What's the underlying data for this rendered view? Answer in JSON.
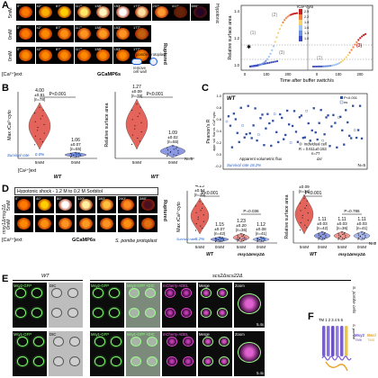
{
  "panelA": {
    "letter": "A",
    "rows": [
      {
        "label": "5mM",
        "times": [
          "0\"",
          "42\"",
          "87\"",
          "117\"",
          "138\"",
          "153\"",
          "177\"",
          "237\"",
          "417\"",
          "600\""
        ]
      },
      {
        "label": "0mM",
        "times": [
          "0\"",
          "42\"",
          "87\"",
          "117\"",
          "138\"",
          "153\"",
          "177\""
        ]
      }
    ],
    "ruptured_label": "Ruptured",
    "ext_label": "[Ca²⁺]ext",
    "sensor_label": "GCaMP6s",
    "legend_line1": "S. pombe",
    "legend_line2": "protoplast",
    "legend_line3": "remove",
    "legend_line4": "cell wall",
    "sidebar_label": "Hypotonic",
    "plot": {
      "ylabel": "Relative surface area",
      "xlabel": "Time after buffer switch/s",
      "colorbar_title": "rCa²⁺cyto",
      "colorbar_ticks": [
        "2.5",
        "2.2",
        "1.9",
        "1.6",
        "1.3",
        "1.0"
      ],
      "xticks": [
        "0",
        "100",
        "200",
        "0",
        "100",
        "200"
      ],
      "yticks": [
        "1.0",
        "1.2",
        "1.4"
      ],
      "annot": [
        "(1)",
        "(2)",
        "(3)",
        "(1)",
        "(3)"
      ],
      "rupture_mark": "✱"
    }
  },
  "panelB": {
    "letter": "B",
    "left": {
      "ylabel": "Max rCa²⁺cyto",
      "pvalue": "P<0.001",
      "groups": [
        {
          "value": "4.00",
          "sd": "±0.81",
          "n": "(n=78)",
          "cond": "5mM",
          "survival": "0.0%"
        },
        {
          "value": "1.06",
          "sd": "±0.07",
          "n": "(n=55)",
          "cond": "0mM",
          "survival": "0.0%"
        }
      ],
      "survival_label": "Survival rate",
      "ext_label": "[Ca²⁺]ext",
      "strain": "WT"
    },
    "right": {
      "ylabel": "Relative surface area",
      "pvalue": "P<0.001",
      "groups": [
        {
          "value": "1.27",
          "sd": "±0.09",
          "n": "(n=78)",
          "cond": "5mM"
        },
        {
          "value": "1.09",
          "sd": "±0.02",
          "n": "(n=55)",
          "cond": "0mM"
        }
      ],
      "n_total": "N=5",
      "strain": "WT"
    }
  },
  "panelC": {
    "letter": "C",
    "title": "WT",
    "ylabel": "Pearson's R",
    "ylabel2": "appr. vol. flux vs. rCa²⁺cyto",
    "legend": [
      "P<0.001",
      "ns"
    ],
    "legend_ind": "individual cell",
    "stat_r": "R = 0.611±0.153",
    "stat_n": "n=77",
    "xlabel": "Apparent volumetric flux",
    "xlabel_sym": "ΔV",
    "survival": "Survival rate 18.2%",
    "n_total": "N=5",
    "yticks": [
      "1.0",
      "0.8",
      "0.6",
      "0.4",
      "0.2",
      "0.0",
      "-0.2"
    ]
  },
  "panelD": {
    "letter": "D",
    "header": "Hypotonic shock - 1.2 M to 0.2 M Sorbitol",
    "times": [
      "0\"",
      "40\"",
      "80\"",
      "120\"",
      "180\"",
      "240\"",
      "285\""
    ],
    "row_labels": [
      "5mM",
      "0mM"
    ],
    "strain": "msy1Δmsy2Δ",
    "ruptured_label": "Ruptured",
    "ext_label": "[Ca²⁺]ext",
    "sensor_label": "GCaMP6s",
    "species": "S. pombe protoplast",
    "left": {
      "ylabel": "Max rCa²⁺cyto",
      "pvalue": "P<0.001",
      "p2": "P=0.036",
      "groups": [
        {
          "value": "4.15",
          "sd": "±0.54",
          "n": "(n=34)",
          "cond": "5mM",
          "survival": "8.2%"
        },
        {
          "value": "1.15",
          "sd": "±0.07",
          "n": "(n=42)",
          "cond": "0mM",
          "survival": "0.0%"
        },
        {
          "value": "1.23",
          "sd": "±0.20",
          "n": "(n=36)",
          "cond": "5mM",
          "survival": "41.7%"
        },
        {
          "value": "1.12",
          "sd": "±0.08",
          "n": "(n=41)",
          "cond": "0mM",
          "survival": "0.0%"
        }
      ],
      "survival_label": "Survival rate",
      "strains": [
        "WT",
        "msy1Δmsy2Δ"
      ]
    },
    "right": {
      "ylabel": "Relative surface area",
      "pvalue": "P<0.001",
      "p2": "P=0.786",
      "groups": [
        {
          "value": "1.27",
          "sd": "±0.09",
          "n": "(n=34)",
          "cond": "5mM"
        },
        {
          "value": "1.11",
          "sd": "±0.03",
          "n": "(n=42)",
          "cond": "0mM"
        },
        {
          "value": "1.11",
          "sd": "±0.03",
          "n": "(n=36)",
          "cond": "5mM"
        },
        {
          "value": "1.11",
          "sd": "±0.03",
          "n": "(n=41)",
          "cond": "0mM"
        }
      ],
      "n_total": "N=2",
      "strains": [
        "WT",
        "msy1Δmsy2Δ"
      ]
    }
  },
  "panelE": {
    "letter": "E",
    "title_wt": "WT",
    "title_mut": "scs2Δscs22Δ",
    "row1": [
      "Msy2-GFP",
      "DIC",
      "Msy2-GFP",
      "Msy2-GFP +DIC",
      "mCherry-ADEL",
      "Merge",
      "Zoom"
    ],
    "row2": [
      "Msy1-GFP",
      "DIC",
      "Msy1-GFP",
      "Msy1-GFP +DIC",
      "mCherry-ADEL",
      "Merge",
      "Zoom"
    ],
    "zoom": "5.4x",
    "species_v": "S. pombe cells"
  },
  "panelF": {
    "letter": "F",
    "tm_label": "TM 1 2 3 4 5 6",
    "legend1": "Msy2",
    "legend2": "Mscl",
    "sub1": "TM6",
    "sub2": "TM3",
    "side": "S. pombe"
  }
}
